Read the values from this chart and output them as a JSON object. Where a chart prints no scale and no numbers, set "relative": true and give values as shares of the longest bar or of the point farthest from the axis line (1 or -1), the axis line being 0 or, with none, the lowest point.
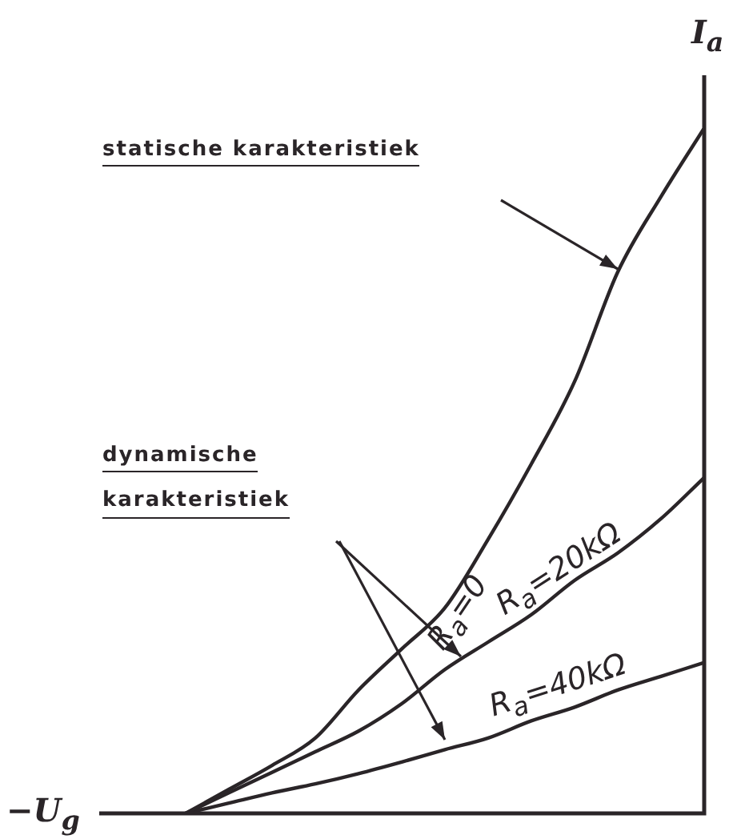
{
  "chart_data": {
    "type": "line",
    "relative": true,
    "marker": "none",
    "line_style": "solid",
    "xlabel": "−U$_{g}$",
    "ylabel": "I$_{a}$",
    "categories": [
      null,
      null,
      null,
      null,
      null,
      null,
      null,
      null,
      null,
      null,
      null,
      null,
      null,
      null,
      null
    ],
    "series": [
      {
        "name": "R$_{a}$=0",
        "color": "#2a2528",
        "values": [
          null,
          null,
          0,
          0.035,
          0.07,
          0.11,
          0.18,
          0.24,
          0.3,
          0.4,
          0.51,
          0.63,
          0.79,
          0.9,
          1
        ]
      },
      {
        "name": "R$_{a}$=20kΩ",
        "color": "#2a2528",
        "values": [
          null,
          null,
          0,
          0.03,
          0.06,
          0.09,
          0.12,
          0.16,
          0.21,
          0.25,
          0.29,
          0.34,
          0.38,
          0.43,
          0.49
        ]
      },
      {
        "name": "R$_{a}$=40kΩ",
        "color": "#2a2528",
        "values": [
          null,
          null,
          0,
          0.015,
          0.03,
          0.043,
          0.058,
          0.075,
          0.093,
          0.11,
          0.135,
          0.155,
          0.18,
          0.2,
          0.22
        ]
      }
    ],
    "annotations": [
      "statische karakteristiek",
      "dynamische karakteristiek"
    ]
  }
}
